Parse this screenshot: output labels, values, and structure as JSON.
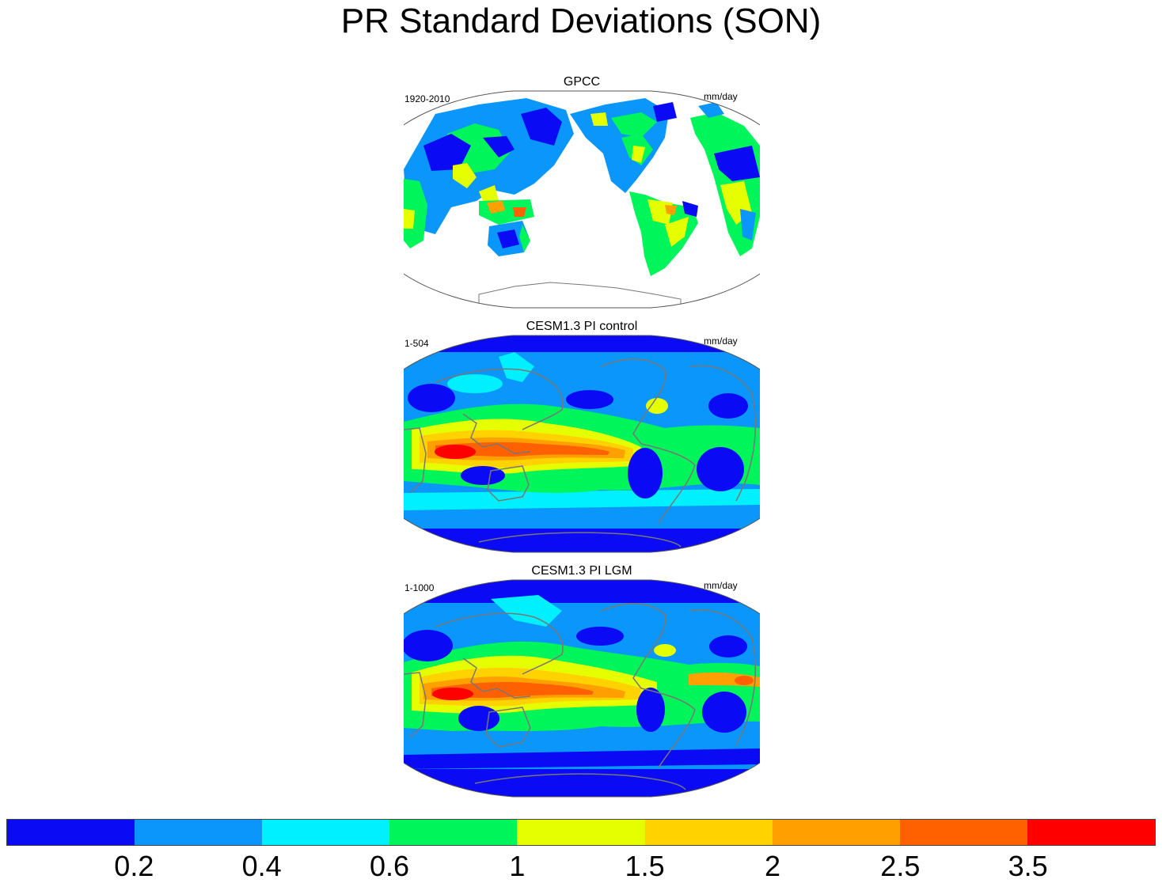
{
  "figure": {
    "title": "PR Standard Deviations (SON)"
  },
  "panels": [
    {
      "title": "GPCC",
      "period": "1920-2010",
      "units": "mm/day",
      "coverage": "land-only"
    },
    {
      "title": "CESM1.3 PI control",
      "period": "1-504",
      "units": "mm/day",
      "coverage": "global"
    },
    {
      "title": "CESM1.3 PI LGM",
      "period": "1-1000",
      "units": "mm/day",
      "coverage": "global"
    }
  ],
  "colorbar": {
    "colors": [
      "#0a0af5",
      "#0a96fa",
      "#00f0ff",
      "#00f55a",
      "#e6ff00",
      "#ffd200",
      "#ffa000",
      "#ff6000",
      "#ff0000"
    ],
    "ticks": [
      "0.2",
      "0.4",
      "0.6",
      "1",
      "1.5",
      "2",
      "2.5",
      "3.5"
    ]
  },
  "map_features": {
    "projection": "global map, Pacific-centered",
    "coastline_color": "#777777",
    "ocean_color_gpcc": "#ffffff"
  }
}
